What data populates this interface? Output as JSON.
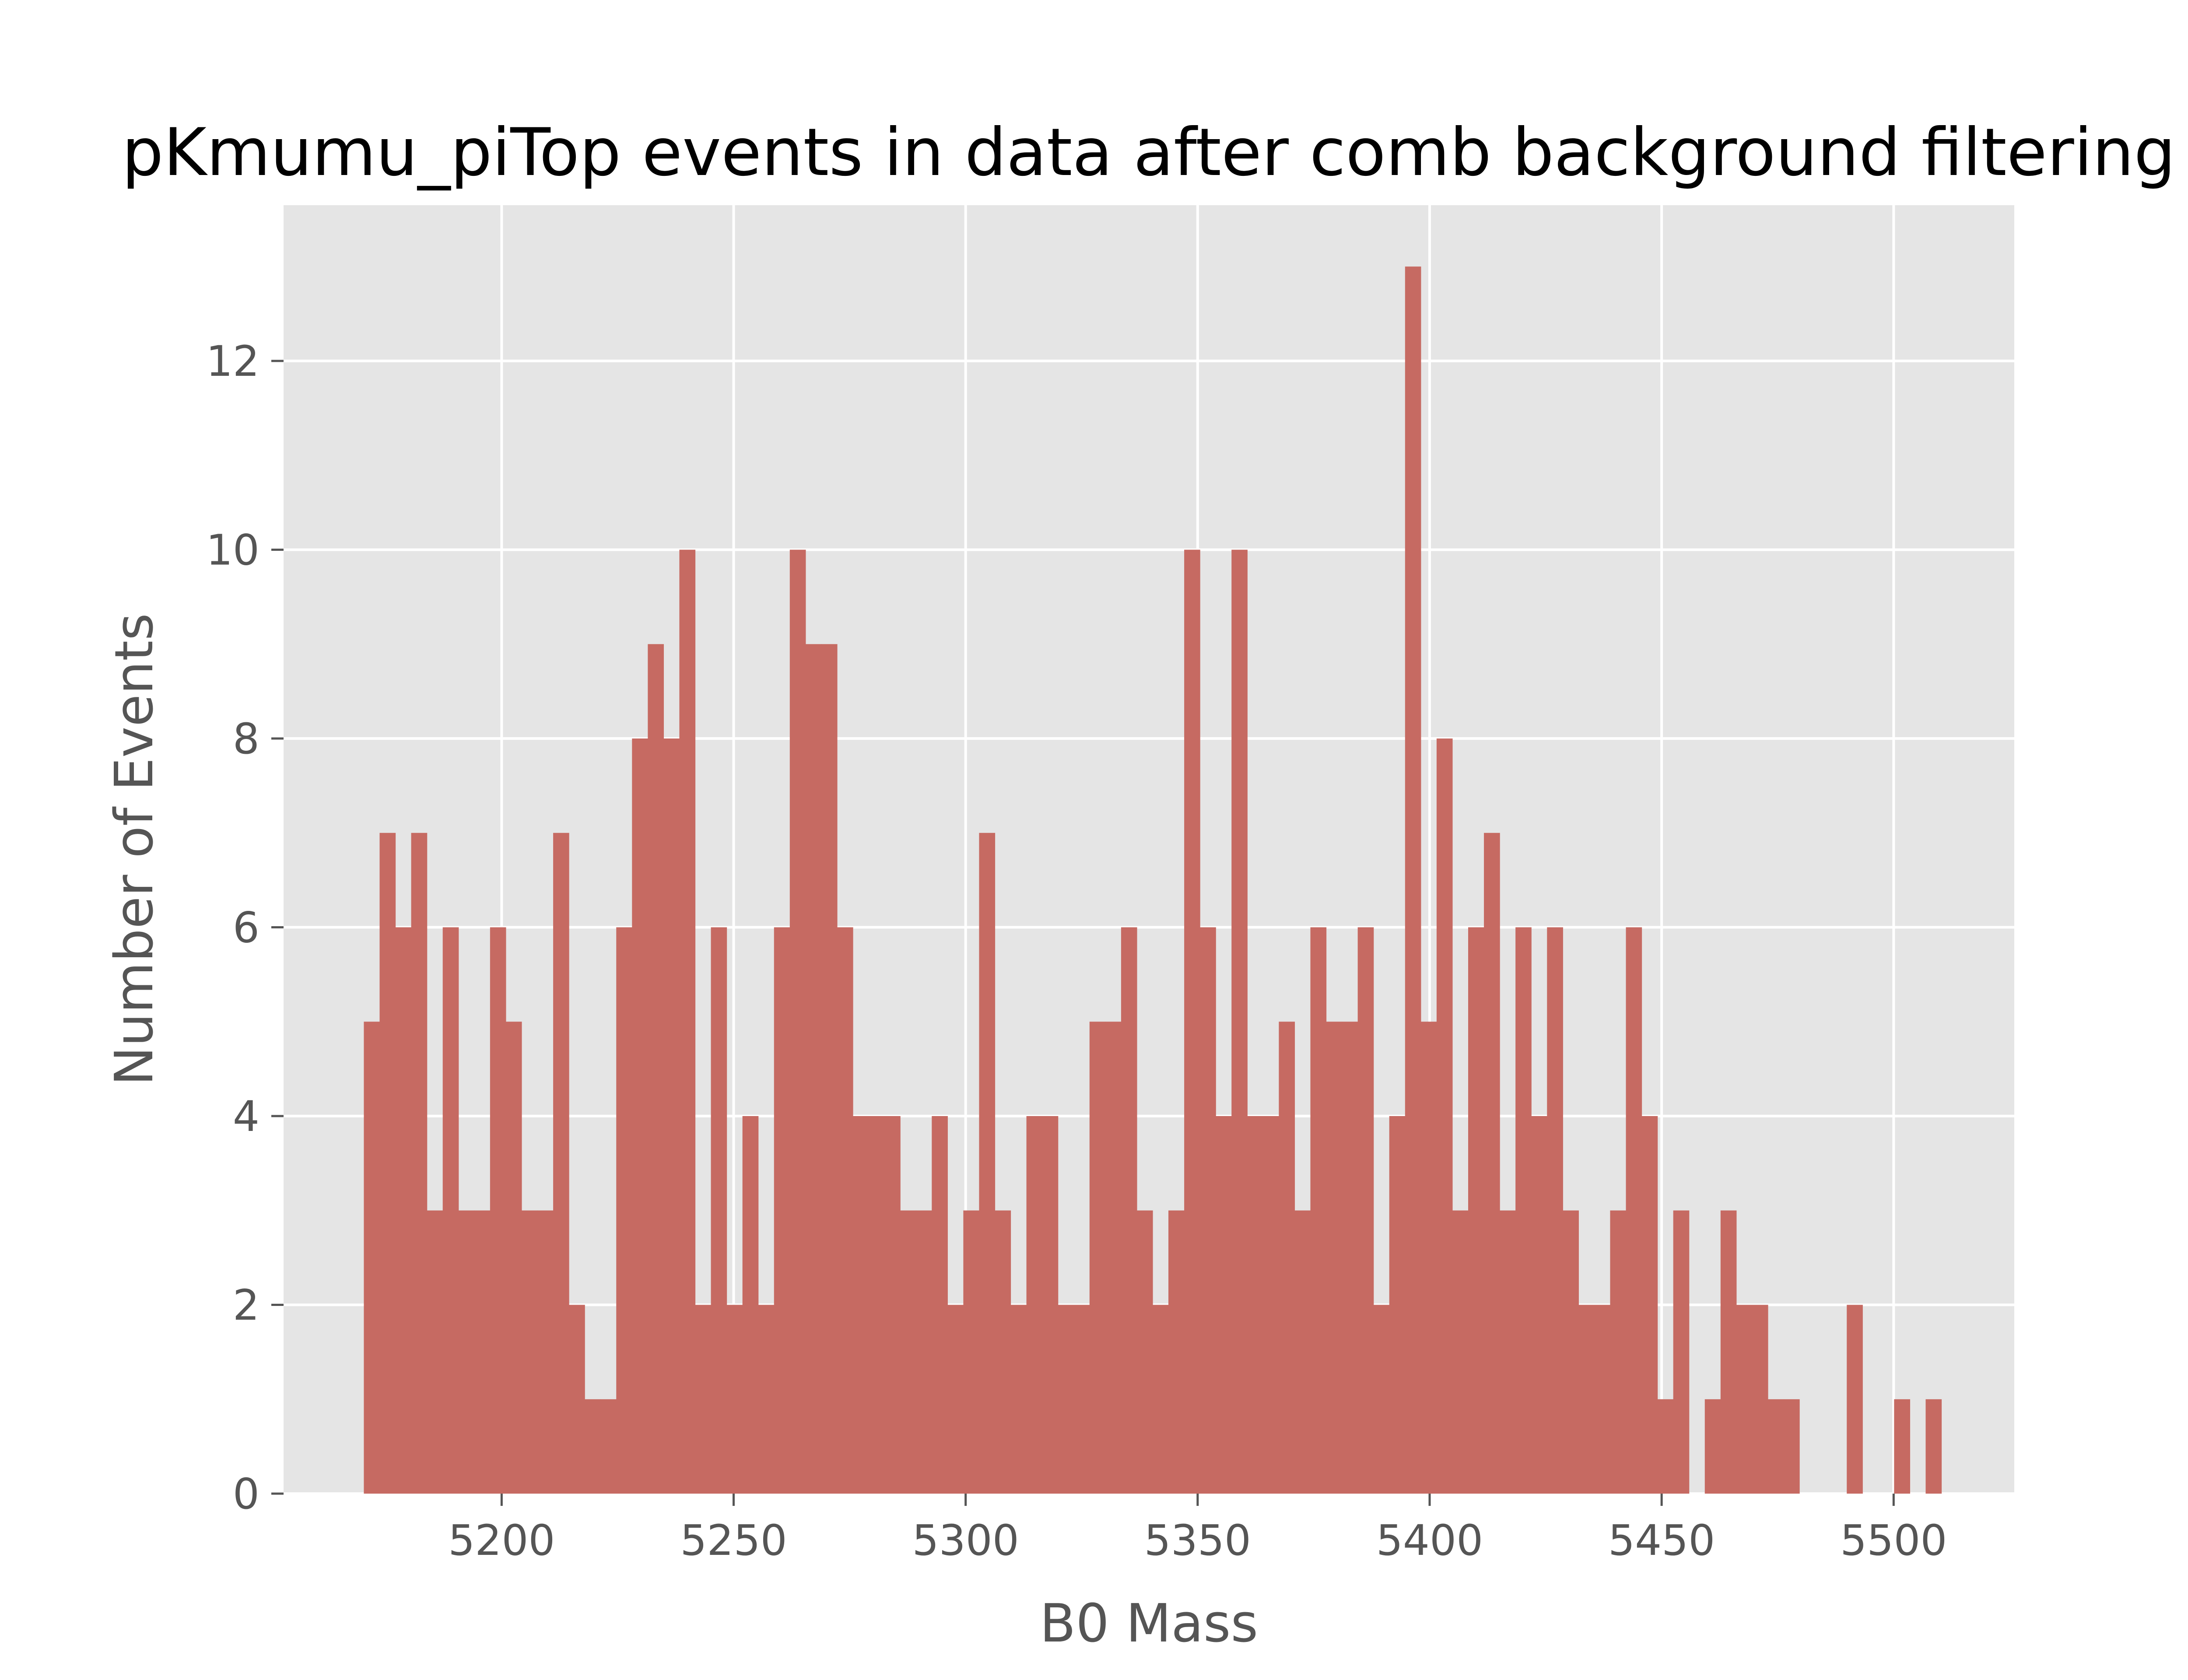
{
  "chart_data": {
    "type": "bar",
    "subtype": "histogram",
    "title": "pKmumu_piTop events in data after comb background filtering",
    "xlabel": "B0 Mass",
    "ylabel": "Number of Events",
    "xlim": [
      5153,
      5526
    ],
    "ylim": [
      0,
      13.65
    ],
    "xticks": [
      5200,
      5250,
      5300,
      5350,
      5400,
      5450,
      5500
    ],
    "yticks": [
      0,
      2,
      4,
      6,
      8,
      10,
      12
    ],
    "grid": true,
    "style": "ggplot",
    "bin_start": 5170.3,
    "bin_width": 3.4,
    "counts": [
      5,
      7,
      6,
      7,
      3,
      6,
      3,
      3,
      6,
      5,
      3,
      3,
      7,
      2,
      1,
      1,
      6,
      8,
      9,
      8,
      10,
      2,
      6,
      2,
      4,
      2,
      6,
      10,
      9,
      9,
      6,
      4,
      4,
      4,
      3,
      3,
      4,
      2,
      3,
      7,
      3,
      2,
      4,
      4,
      2,
      2,
      5,
      5,
      6,
      3,
      2,
      3,
      10,
      6,
      4,
      10,
      4,
      4,
      5,
      3,
      6,
      5,
      5,
      6,
      2,
      4,
      13,
      5,
      8,
      3,
      6,
      7,
      3,
      6,
      4,
      6,
      3,
      2,
      2,
      3,
      6,
      4,
      1,
      3,
      0,
      1,
      3,
      2,
      2,
      1,
      1,
      0,
      0,
      0,
      2,
      0,
      0,
      1,
      0,
      1
    ],
    "colors": {
      "bar": "#c66a62",
      "plot_background": "#e5e5e5",
      "grid": "#ffffff",
      "axis_text": "#555555",
      "title": "#000000"
    }
  }
}
